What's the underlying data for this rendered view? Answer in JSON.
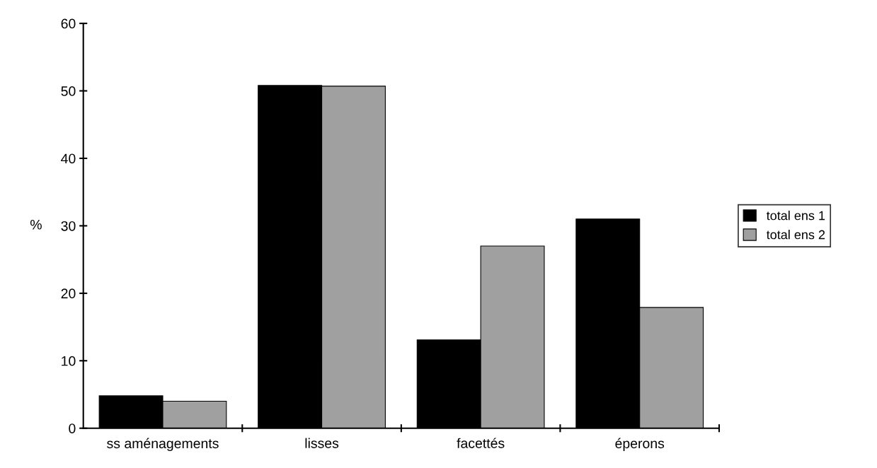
{
  "chart_data": {
    "type": "bar",
    "ylabel": "%",
    "categories": [
      "ss aménagements",
      "lisses",
      "facettés",
      "éperons"
    ],
    "series": [
      {
        "name": "total ens 1",
        "color": "#000000",
        "values": [
          4.8,
          50.8,
          13.1,
          31.0
        ]
      },
      {
        "name": "total ens 2",
        "color": "#a0a0a0",
        "values": [
          4.0,
          50.7,
          27.0,
          17.9
        ]
      }
    ],
    "ylim": [
      0,
      60
    ],
    "yticks": [
      0,
      10,
      20,
      30,
      40,
      50,
      60
    ],
    "grid": false,
    "legend": "right"
  }
}
